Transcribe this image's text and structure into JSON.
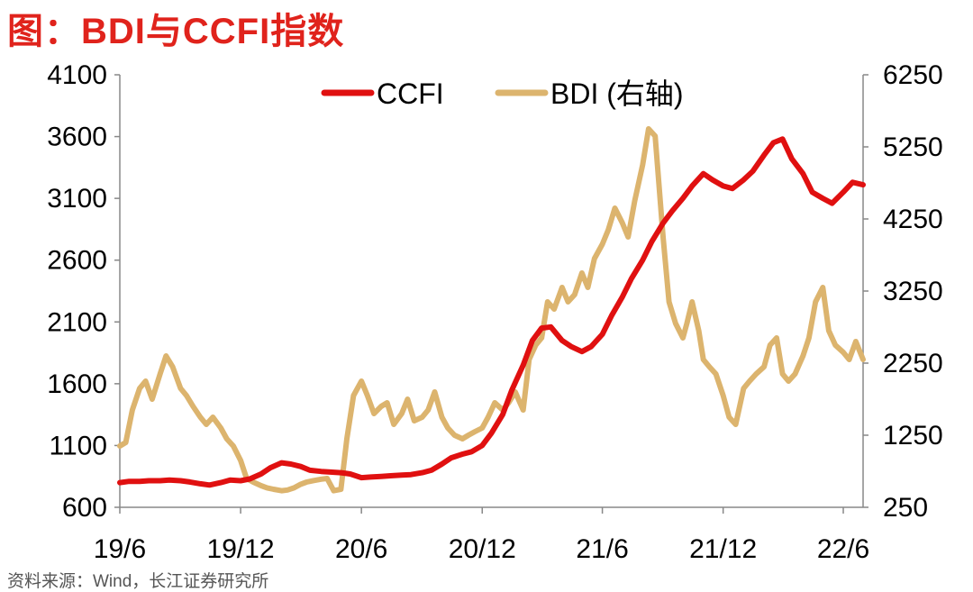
{
  "title": "图：BDI与CCFI指数",
  "source": "资料来源：Wind，长江证券研究所",
  "chart_data": {
    "type": "line",
    "x_tick_labels": [
      "19/6",
      "19/12",
      "20/6",
      "20/12",
      "21/6",
      "21/12",
      "22/6"
    ],
    "x_range": [
      "2019-06",
      "2022-07"
    ],
    "y_left_ticks": [
      600,
      1100,
      1600,
      2100,
      2600,
      3100,
      3600,
      4100
    ],
    "y_left_range": [
      600,
      4100
    ],
    "y_right_ticks": [
      250,
      1250,
      2250,
      3250,
      4250,
      5250,
      6250
    ],
    "y_right_range": [
      250,
      6250
    ],
    "legend_position": "top-center",
    "colors": {
      "CCFI": "#e01010",
      "BDI": "#dcb46e"
    },
    "series": [
      {
        "name": "CCFI",
        "axis": "left",
        "x": [
          "2019-06-01",
          "2019-06-15",
          "2019-07-01",
          "2019-07-15",
          "2019-08-01",
          "2019-08-15",
          "2019-09-01",
          "2019-09-15",
          "2019-10-01",
          "2019-10-15",
          "2019-11-01",
          "2019-11-15",
          "2019-12-01",
          "2019-12-15",
          "2020-01-01",
          "2020-01-15",
          "2020-02-01",
          "2020-02-15",
          "2020-03-01",
          "2020-03-15",
          "2020-04-01",
          "2020-04-15",
          "2020-05-01",
          "2020-05-15",
          "2020-06-01",
          "2020-06-15",
          "2020-07-01",
          "2020-07-15",
          "2020-08-01",
          "2020-08-15",
          "2020-09-01",
          "2020-09-15",
          "2020-10-01",
          "2020-10-15",
          "2020-11-01",
          "2020-11-15",
          "2020-12-01",
          "2020-12-15",
          "2021-01-01",
          "2021-01-15",
          "2021-02-01",
          "2021-02-15",
          "2021-03-01",
          "2021-03-15",
          "2021-04-01",
          "2021-04-15",
          "2021-05-01",
          "2021-05-15",
          "2021-06-01",
          "2021-06-15",
          "2021-07-01",
          "2021-07-15",
          "2021-08-01",
          "2021-08-15",
          "2021-09-01",
          "2021-09-15",
          "2021-10-01",
          "2021-10-15",
          "2021-11-01",
          "2021-11-15",
          "2021-12-01",
          "2021-12-15",
          "2022-01-01",
          "2022-01-15",
          "2022-02-01",
          "2022-02-15",
          "2022-03-01",
          "2022-03-15",
          "2022-04-01",
          "2022-04-15",
          "2022-05-01",
          "2022-05-15",
          "2022-06-01",
          "2022-06-15",
          "2022-07-01"
        ],
        "values": [
          800,
          810,
          810,
          815,
          815,
          820,
          815,
          805,
          790,
          780,
          800,
          820,
          815,
          830,
          870,
          920,
          960,
          950,
          930,
          900,
          890,
          885,
          880,
          870,
          840,
          845,
          850,
          855,
          860,
          865,
          880,
          900,
          950,
          1000,
          1030,
          1050,
          1100,
          1200,
          1350,
          1550,
          1750,
          1950,
          2050,
          2060,
          1950,
          1900,
          1860,
          1900,
          2000,
          2150,
          2300,
          2450,
          2600,
          2750,
          2900,
          3000,
          3100,
          3200,
          3300,
          3250,
          3200,
          3180,
          3250,
          3320,
          3450,
          3550,
          3580,
          3420,
          3300,
          3150,
          3100,
          3060,
          3150,
          3230,
          3210
        ]
      },
      {
        "name": "BDI",
        "axis": "right",
        "x": [
          "2019-06-01",
          "2019-06-10",
          "2019-06-20",
          "2019-07-01",
          "2019-07-10",
          "2019-07-20",
          "2019-08-01",
          "2019-08-10",
          "2019-08-20",
          "2019-09-01",
          "2019-09-10",
          "2019-09-20",
          "2019-10-01",
          "2019-10-10",
          "2019-10-20",
          "2019-11-01",
          "2019-11-10",
          "2019-11-20",
          "2019-12-01",
          "2019-12-10",
          "2019-12-20",
          "2020-01-01",
          "2020-01-10",
          "2020-01-20",
          "2020-02-01",
          "2020-02-10",
          "2020-02-20",
          "2020-03-01",
          "2020-03-10",
          "2020-03-20",
          "2020-04-01",
          "2020-04-10",
          "2020-04-20",
          "2020-05-01",
          "2020-05-10",
          "2020-05-20",
          "2020-06-01",
          "2020-06-10",
          "2020-06-20",
          "2020-07-01",
          "2020-07-10",
          "2020-07-20",
          "2020-08-01",
          "2020-08-10",
          "2020-08-20",
          "2020-09-01",
          "2020-09-10",
          "2020-09-20",
          "2020-10-01",
          "2020-10-10",
          "2020-10-20",
          "2020-11-01",
          "2020-11-10",
          "2020-11-20",
          "2020-12-01",
          "2020-12-10",
          "2020-12-20",
          "2021-01-01",
          "2021-01-10",
          "2021-01-20",
          "2021-02-01",
          "2021-02-10",
          "2021-02-20",
          "2021-03-01",
          "2021-03-10",
          "2021-03-20",
          "2021-04-01",
          "2021-04-10",
          "2021-04-20",
          "2021-05-01",
          "2021-05-10",
          "2021-05-20",
          "2021-06-01",
          "2021-06-10",
          "2021-06-20",
          "2021-07-01",
          "2021-07-10",
          "2021-07-20",
          "2021-08-01",
          "2021-08-10",
          "2021-08-20",
          "2021-09-01",
          "2021-09-10",
          "2021-09-20",
          "2021-10-01",
          "2021-10-07",
          "2021-10-15",
          "2021-10-25",
          "2021-11-01",
          "2021-11-10",
          "2021-11-20",
          "2021-12-01",
          "2021-12-10",
          "2021-12-20",
          "2022-01-01",
          "2022-01-10",
          "2022-01-20",
          "2022-02-01",
          "2022-02-10",
          "2022-02-20",
          "2022-03-01",
          "2022-03-10",
          "2022-03-20",
          "2022-04-01",
          "2022-04-10",
          "2022-04-20",
          "2022-05-01",
          "2022-05-10",
          "2022-05-20",
          "2022-06-01",
          "2022-06-10",
          "2022-06-20",
          "2022-07-01"
        ],
        "values": [
          1100,
          1150,
          1600,
          1900,
          2000,
          1750,
          2100,
          2350,
          2200,
          1900,
          1800,
          1650,
          1500,
          1400,
          1500,
          1350,
          1200,
          1100,
          900,
          650,
          600,
          550,
          520,
          500,
          480,
          490,
          520,
          570,
          600,
          620,
          640,
          650,
          480,
          500,
          1200,
          1800,
          2000,
          1800,
          1550,
          1650,
          1700,
          1400,
          1550,
          1750,
          1450,
          1500,
          1600,
          1850,
          1500,
          1350,
          1250,
          1200,
          1250,
          1300,
          1350,
          1500,
          1700,
          1600,
          1700,
          1850,
          1600,
          2300,
          2500,
          2600,
          3100,
          3000,
          3300,
          3100,
          3200,
          3500,
          3300,
          3700,
          3900,
          4100,
          4400,
          4200,
          4000,
          4500,
          5000,
          5500,
          5400,
          4000,
          3100,
          2800,
          2600,
          2800,
          3100,
          2700,
          2300,
          2200,
          2100,
          1800,
          1500,
          1400,
          1900,
          2000,
          2100,
          2200,
          2500,
          2600,
          2100,
          2000,
          2100,
          2350,
          2600,
          3100,
          3300,
          2700,
          2500,
          2400,
          2300,
          2550,
          2300
        ]
      }
    ]
  }
}
